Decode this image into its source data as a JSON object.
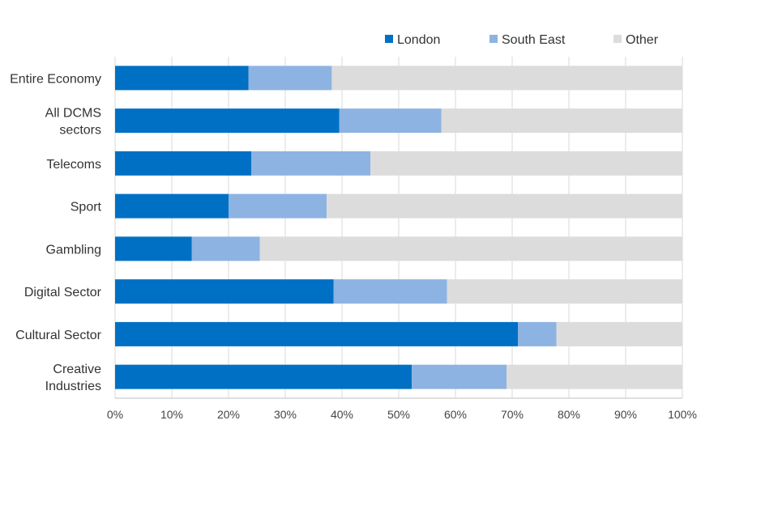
{
  "chart_data": {
    "type": "bar",
    "orientation": "horizontal",
    "stacked": true,
    "title": "",
    "xlabel": "",
    "ylabel": "",
    "xlim": [
      0,
      100
    ],
    "x_ticks": [
      "0%",
      "10%",
      "20%",
      "30%",
      "40%",
      "50%",
      "60%",
      "70%",
      "80%",
      "90%",
      "100%"
    ],
    "grid": true,
    "legend_position": "top-right",
    "categories": [
      [
        "Entire Economy"
      ],
      [
        "All DCMS",
        "sectors"
      ],
      [
        "Telecoms"
      ],
      [
        "Sport"
      ],
      [
        "Gambling"
      ],
      [
        "Digital Sector"
      ],
      [
        "Cultural Sector"
      ],
      [
        "Creative",
        "Industries"
      ]
    ],
    "series": [
      {
        "name": "London",
        "color": "#0070c4",
        "values": [
          23.5,
          39.5,
          24,
          20,
          13.5,
          38.5,
          71,
          52.3
        ]
      },
      {
        "name": "South East",
        "color": "#8db3e2",
        "values": [
          14.7,
          18,
          21,
          17.3,
          12,
          20,
          6.8,
          16.7
        ]
      },
      {
        "name": "Other",
        "color": "#dcdcdc",
        "values": [
          61.8,
          42.5,
          55,
          62.7,
          74.5,
          41.5,
          22.2,
          31
        ]
      }
    ]
  }
}
